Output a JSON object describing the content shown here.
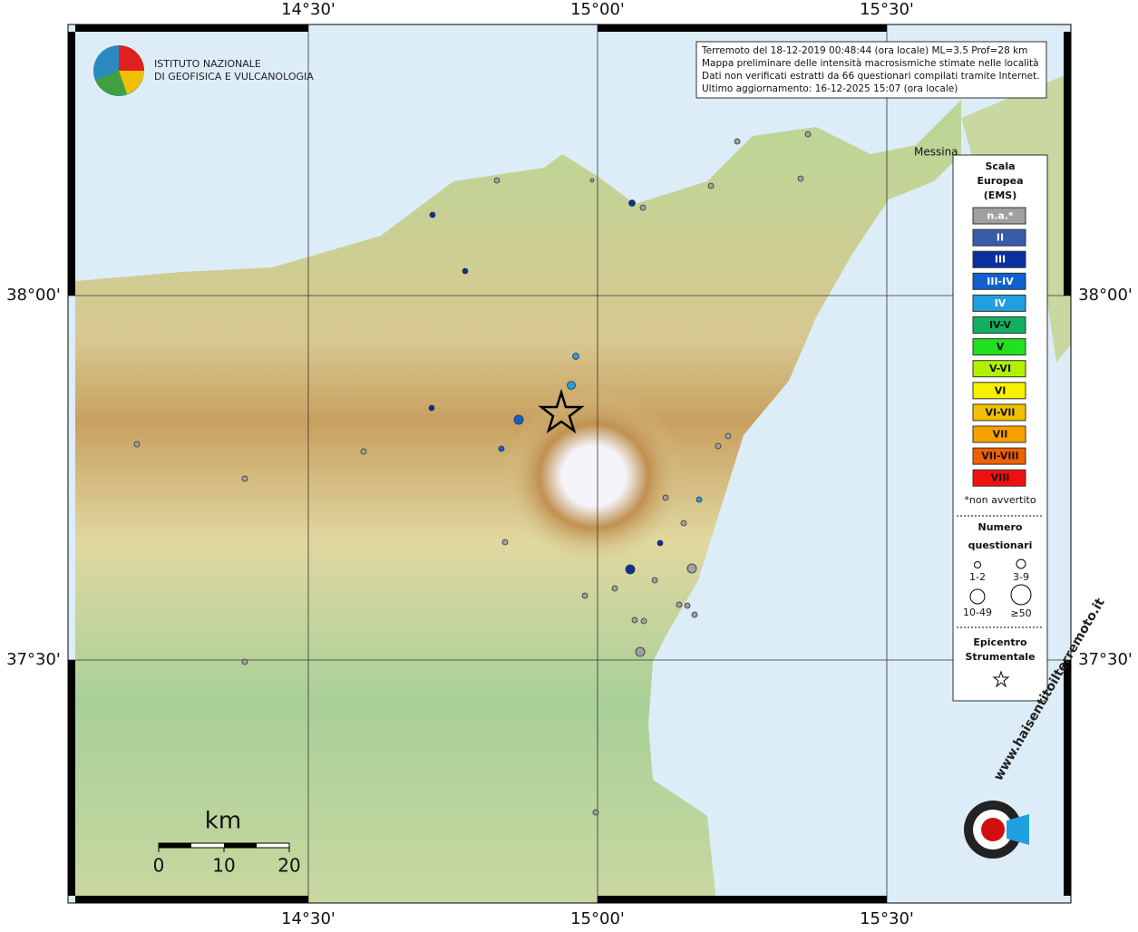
{
  "graticule": {
    "lon": [
      "14°30'",
      "15°00'",
      "15°30'"
    ],
    "lat": [
      "38°00'",
      "37°30'"
    ]
  },
  "logo": {
    "line1": "ISTITUTO NAZIONALE",
    "line2": "DI GEOFISICA E VULCANOLOGIA"
  },
  "info": [
    "Terremoto del 18-12-2019 00:48:44 (ora locale) ML=3.5 Prof=28 km",
    "Mappa preliminare delle intensità macrosismiche stimate nelle località",
    "Dati non verificati estratti da 66 questionari compilati tramite Internet.",
    "Ultimo aggiornamento: 16-12-2025 15:07 (ora locale)"
  ],
  "place": "Messina",
  "legend": {
    "title": [
      "Scala",
      "Europea",
      "(EMS)"
    ],
    "items": [
      {
        "label": "n.a.*",
        "color": "#a0a0a0"
      },
      {
        "label": "II",
        "color": "#3a5ba8"
      },
      {
        "label": "III",
        "color": "#0a2fa0"
      },
      {
        "label": "III-IV",
        "color": "#1060d0"
      },
      {
        "label": "IV",
        "color": "#20a0e0"
      },
      {
        "label": "IV-V",
        "color": "#10b060"
      },
      {
        "label": "V",
        "color": "#20e020"
      },
      {
        "label": "V-VI",
        "color": "#b0f000"
      },
      {
        "label": "VI",
        "color": "#f8f000"
      },
      {
        "label": "VI-VII",
        "color": "#f0c000"
      },
      {
        "label": "VII",
        "color": "#f8a000"
      },
      {
        "label": "VII-VIII",
        "color": "#f06000"
      },
      {
        "label": "VIII",
        "color": "#f01010"
      }
    ],
    "note": "*non avvertito",
    "count_title": [
      "Numero",
      "questionari"
    ],
    "sizes": [
      "1-2",
      "3-9",
      "10-49",
      "≥50"
    ],
    "epicenter": [
      "Epicentro",
      "Strumentale"
    ]
  },
  "scale": {
    "unit": "km",
    "ticks": [
      0,
      10,
      20
    ]
  },
  "brand": "www.haisentitoilterremoto.it"
}
